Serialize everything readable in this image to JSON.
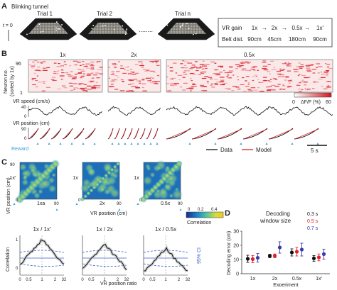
{
  "panelA": {
    "letter": "A",
    "title": "Blinking tunnel",
    "t0": "t = 0",
    "trials": [
      "Trial 1",
      "Trial 2",
      "Trial n"
    ],
    "dots": "........",
    "table": {
      "row1_label": "VR gain",
      "row1_values": [
        "1x",
        "2x",
        "0.5x",
        "1x′"
      ],
      "row2_label": "Belt dist.",
      "row2_values": [
        "90cm",
        "45cm",
        "180cm",
        "90cm"
      ],
      "arrow": "→"
    }
  },
  "panelB": {
    "letter": "B",
    "conditions": [
      "1x",
      "2x",
      "0.5x"
    ],
    "ytick_top": "96",
    "ytick_bottom": "1",
    "ylabel1": "Neuron no.",
    "ylabel2": "(sorted by 1x)",
    "colorbar_min": "0",
    "colorbar_label": "ΔF/F (%)",
    "colorbar_max": "60",
    "speed_label": "VR speed (cm/s)",
    "speed_ticks": [
      "40",
      "0"
    ],
    "pos_label": "VR position (cm)",
    "pos_ticks": [
      "90",
      "0"
    ],
    "reward_label": "Reward",
    "legend_data": "Data",
    "legend_model": "Model",
    "scale_label": "5 s",
    "colors": {
      "data": "#111111",
      "model": "#e0202a",
      "reward": "#3aa0d8"
    }
  },
  "panelC": {
    "letter": "C",
    "maps": [
      {
        "ylabel": "VR position (cm)",
        "ytop": "90",
        "ycond": "1x′",
        "xcond": "1xa",
        "x0": "0",
        "x90": "90"
      },
      {
        "ycond": "1x",
        "xcond": "2x",
        "x0": "0",
        "x90": "90"
      },
      {
        "ycond": "1x",
        "xcond": "0.5x",
        "x0": "0",
        "x90": "90"
      }
    ],
    "xlabel": "VR position (cm)",
    "cbar_ticks": [
      "0",
      "0.2",
      "0.4"
    ],
    "cbar_label": "Correlation",
    "line_titles": [
      "1x / 1x′",
      "1x / 2x",
      "1x / 0.5x"
    ],
    "line_ylabel": "Correlation",
    "line_yticks": [
      "1",
      "0"
    ],
    "line_xticks": [
      "0",
      "0.5",
      "1",
      "2",
      "32"
    ],
    "line_xlabel": "VR position ratio",
    "ci_label": "95% CI"
  },
  "chart_data": {
    "type": "scatter",
    "title": "Decoding window size",
    "xlabel": "Experiment",
    "ylabel": "Decoding error (cm)",
    "ylim": [
      0,
      30
    ],
    "yticks": [
      0,
      10,
      20,
      30
    ],
    "categories": [
      "1x",
      "2x",
      "0.5x",
      "1x′"
    ],
    "legend_placement": "top-right",
    "series": [
      {
        "name": "0.3 s",
        "color": "#111111",
        "values": [
          10.5,
          12.5,
          15.0,
          10.8
        ],
        "err": [
          2.5,
          1.2,
          2.5,
          2.0
        ]
      },
      {
        "name": "0.5 s",
        "color": "#e0202a",
        "values": [
          10.3,
          12.6,
          15.5,
          11.5
        ],
        "err": [
          2.5,
          1.3,
          3.0,
          2.4
        ]
      },
      {
        "name": "0.7 s",
        "color": "#3a3aa8",
        "values": [
          11.2,
          18.5,
          17.0,
          13.8
        ],
        "err": [
          3.0,
          4.0,
          4.5,
          3.5
        ]
      }
    ]
  },
  "panelD": {
    "letter": "D"
  }
}
